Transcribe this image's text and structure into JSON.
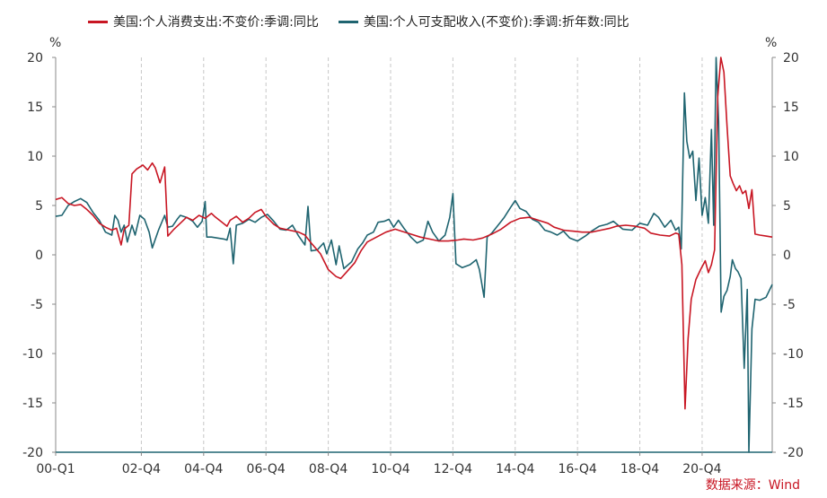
{
  "legend": {
    "series1": "美国:个人消费支出:不变价:季调:同比",
    "series2": "美国:个人可支配收入(不变价):季调:折年数:同比"
  },
  "unit_left": "%",
  "unit_right": "%",
  "source": "数据来源：Wind",
  "colors": {
    "series1": "#c81623",
    "series2": "#1f6470",
    "axis": "#1f6470",
    "grid": "#c8c8c8"
  },
  "chart_data": {
    "type": "line",
    "ylim": [
      -20,
      20
    ],
    "yticks": [
      20,
      15,
      10,
      5,
      0,
      -5,
      -10,
      -15,
      -20
    ],
    "xlabels": [
      "00-Q1",
      "02-Q4",
      "04-Q4",
      "06-Q4",
      "08-Q4",
      "10-Q4",
      "12-Q4",
      "14-Q4",
      "16-Q4",
      "18-Q4",
      "20-Q4"
    ],
    "xlabel_t": [
      2000.0,
      2002.75,
      2004.75,
      2006.75,
      2008.75,
      2010.75,
      2012.75,
      2014.75,
      2016.75,
      2018.75,
      2020.75
    ],
    "xrange": [
      2000.0,
      2022.0
    ],
    "grid_x": true,
    "series": [
      {
        "name": "美国:个人消费支出:不变价:季调:同比",
        "points": [
          [
            2000.0,
            5.6
          ],
          [
            2000.2,
            5.8
          ],
          [
            2000.4,
            5.2
          ],
          [
            2000.6,
            5.0
          ],
          [
            2000.8,
            5.1
          ],
          [
            2001.0,
            4.6
          ],
          [
            2001.2,
            4.0
          ],
          [
            2001.4,
            3.2
          ],
          [
            2001.6,
            2.8
          ],
          [
            2001.8,
            2.5
          ],
          [
            2001.95,
            2.7
          ],
          [
            2002.1,
            1.0
          ],
          [
            2002.2,
            2.6
          ],
          [
            2002.35,
            3.0
          ],
          [
            2002.45,
            8.2
          ],
          [
            2002.6,
            8.7
          ],
          [
            2002.8,
            9.1
          ],
          [
            2002.95,
            8.6
          ],
          [
            2003.1,
            9.3
          ],
          [
            2003.2,
            8.8
          ],
          [
            2003.35,
            7.3
          ],
          [
            2003.5,
            8.9
          ],
          [
            2003.6,
            1.9
          ],
          [
            2003.8,
            2.6
          ],
          [
            2004.0,
            3.2
          ],
          [
            2004.2,
            3.8
          ],
          [
            2004.4,
            3.5
          ],
          [
            2004.6,
            4.0
          ],
          [
            2004.8,
            3.7
          ],
          [
            2005.0,
            4.2
          ],
          [
            2005.1,
            3.9
          ],
          [
            2005.3,
            3.4
          ],
          [
            2005.5,
            2.9
          ],
          [
            2005.6,
            3.5
          ],
          [
            2005.8,
            3.9
          ],
          [
            2006.0,
            3.3
          ],
          [
            2006.2,
            3.7
          ],
          [
            2006.4,
            4.3
          ],
          [
            2006.6,
            4.6
          ],
          [
            2006.75,
            3.9
          ],
          [
            2007.0,
            3.1
          ],
          [
            2007.2,
            2.7
          ],
          [
            2007.5,
            2.5
          ],
          [
            2007.8,
            2.3
          ],
          [
            2008.0,
            2.0
          ],
          [
            2008.2,
            1.2
          ],
          [
            2008.5,
            0.1
          ],
          [
            2008.75,
            -1.5
          ],
          [
            2009.0,
            -2.2
          ],
          [
            2009.15,
            -2.4
          ],
          [
            2009.35,
            -1.7
          ],
          [
            2009.6,
            -0.8
          ],
          [
            2009.8,
            0.4
          ],
          [
            2010.0,
            1.3
          ],
          [
            2010.3,
            1.8
          ],
          [
            2010.6,
            2.3
          ],
          [
            2010.9,
            2.6
          ],
          [
            2011.1,
            2.4
          ],
          [
            2011.4,
            2.1
          ],
          [
            2011.7,
            1.8
          ],
          [
            2012.0,
            1.6
          ],
          [
            2012.3,
            1.4
          ],
          [
            2012.6,
            1.4
          ],
          [
            2012.9,
            1.5
          ],
          [
            2013.1,
            1.6
          ],
          [
            2013.4,
            1.5
          ],
          [
            2013.7,
            1.7
          ],
          [
            2014.0,
            2.1
          ],
          [
            2014.3,
            2.6
          ],
          [
            2014.6,
            3.3
          ],
          [
            2014.9,
            3.7
          ],
          [
            2015.2,
            3.8
          ],
          [
            2015.5,
            3.5
          ],
          [
            2015.8,
            3.2
          ],
          [
            2016.0,
            2.8
          ],
          [
            2016.3,
            2.5
          ],
          [
            2016.6,
            2.4
          ],
          [
            2016.9,
            2.3
          ],
          [
            2017.2,
            2.3
          ],
          [
            2017.5,
            2.5
          ],
          [
            2017.8,
            2.7
          ],
          [
            2018.0,
            2.9
          ],
          [
            2018.3,
            3.0
          ],
          [
            2018.6,
            2.9
          ],
          [
            2018.9,
            2.7
          ],
          [
            2019.1,
            2.2
          ],
          [
            2019.4,
            2.0
          ],
          [
            2019.7,
            1.9
          ],
          [
            2019.9,
            2.2
          ],
          [
            2020.0,
            2.1
          ],
          [
            2020.1,
            -1.0
          ],
          [
            2020.2,
            -15.6
          ],
          [
            2020.3,
            -8.5
          ],
          [
            2020.4,
            -4.5
          ],
          [
            2020.55,
            -2.5
          ],
          [
            2020.7,
            -1.5
          ],
          [
            2020.85,
            -0.6
          ],
          [
            2020.95,
            -1.8
          ],
          [
            2021.05,
            -1.0
          ],
          [
            2021.15,
            0.5
          ],
          [
            2021.25,
            16.0
          ],
          [
            2021.35,
            20.0
          ],
          [
            2021.45,
            18.5
          ],
          [
            2021.55,
            13.0
          ],
          [
            2021.65,
            8.0
          ],
          [
            2021.75,
            7.2
          ],
          [
            2021.85,
            6.5
          ],
          [
            2021.95,
            7.0
          ],
          [
            2022.05,
            6.2
          ],
          [
            2022.15,
            6.5
          ],
          [
            2022.25,
            4.7
          ],
          [
            2022.35,
            6.6
          ],
          [
            2022.45,
            2.1
          ],
          [
            2022.6,
            2.0
          ],
          [
            2022.8,
            1.9
          ],
          [
            2023.0,
            1.8
          ]
        ]
      },
      {
        "name": "美国:个人可支配收入(不变价):季调:折年数:同比",
        "points": [
          [
            2000.0,
            3.9
          ],
          [
            2000.2,
            4.0
          ],
          [
            2000.4,
            5.0
          ],
          [
            2000.6,
            5.4
          ],
          [
            2000.8,
            5.7
          ],
          [
            2001.0,
            5.3
          ],
          [
            2001.2,
            4.3
          ],
          [
            2001.4,
            3.5
          ],
          [
            2001.6,
            2.3
          ],
          [
            2001.8,
            2.0
          ],
          [
            2001.9,
            4.0
          ],
          [
            2002.0,
            3.5
          ],
          [
            2002.1,
            2.3
          ],
          [
            2002.2,
            3.0
          ],
          [
            2002.3,
            1.3
          ],
          [
            2002.45,
            3.0
          ],
          [
            2002.55,
            2.0
          ],
          [
            2002.7,
            4.0
          ],
          [
            2002.85,
            3.6
          ],
          [
            2003.0,
            2.3
          ],
          [
            2003.1,
            0.7
          ],
          [
            2003.3,
            2.5
          ],
          [
            2003.5,
            4.0
          ],
          [
            2003.6,
            2.8
          ],
          [
            2003.75,
            2.9
          ],
          [
            2003.9,
            3.6
          ],
          [
            2004.0,
            4.0
          ],
          [
            2004.2,
            3.8
          ],
          [
            2004.4,
            3.4
          ],
          [
            2004.55,
            2.8
          ],
          [
            2004.7,
            3.4
          ],
          [
            2004.8,
            5.4
          ],
          [
            2004.85,
            1.8
          ],
          [
            2005.0,
            1.8
          ],
          [
            2005.2,
            1.7
          ],
          [
            2005.4,
            1.6
          ],
          [
            2005.5,
            1.5
          ],
          [
            2005.6,
            2.7
          ],
          [
            2005.7,
            -0.9
          ],
          [
            2005.8,
            3.0
          ],
          [
            2006.0,
            3.2
          ],
          [
            2006.2,
            3.6
          ],
          [
            2006.4,
            3.3
          ],
          [
            2006.6,
            3.8
          ],
          [
            2006.8,
            4.1
          ],
          [
            2007.0,
            3.4
          ],
          [
            2007.2,
            2.6
          ],
          [
            2007.4,
            2.5
          ],
          [
            2007.6,
            3.0
          ],
          [
            2007.8,
            1.9
          ],
          [
            2008.0,
            1.0
          ],
          [
            2008.1,
            4.9
          ],
          [
            2008.2,
            0.4
          ],
          [
            2008.4,
            0.5
          ],
          [
            2008.6,
            1.2
          ],
          [
            2008.7,
            0.1
          ],
          [
            2008.85,
            1.5
          ],
          [
            2009.0,
            -1.0
          ],
          [
            2009.1,
            0.9
          ],
          [
            2009.25,
            -1.4
          ],
          [
            2009.5,
            -0.7
          ],
          [
            2009.7,
            0.6
          ],
          [
            2009.85,
            1.2
          ],
          [
            2010.0,
            2.0
          ],
          [
            2010.2,
            2.3
          ],
          [
            2010.35,
            3.3
          ],
          [
            2010.55,
            3.4
          ],
          [
            2010.7,
            3.6
          ],
          [
            2010.85,
            2.8
          ],
          [
            2011.0,
            3.5
          ],
          [
            2011.2,
            2.6
          ],
          [
            2011.4,
            1.8
          ],
          [
            2011.6,
            1.2
          ],
          [
            2011.8,
            1.5
          ],
          [
            2011.95,
            3.4
          ],
          [
            2012.1,
            2.3
          ],
          [
            2012.3,
            1.4
          ],
          [
            2012.5,
            2.0
          ],
          [
            2012.65,
            3.8
          ],
          [
            2012.75,
            6.2
          ],
          [
            2012.85,
            -0.9
          ],
          [
            2013.05,
            -1.3
          ],
          [
            2013.3,
            -1.0
          ],
          [
            2013.5,
            -0.5
          ],
          [
            2013.6,
            -1.5
          ],
          [
            2013.75,
            -4.3
          ],
          [
            2013.85,
            1.8
          ],
          [
            2014.0,
            2.2
          ],
          [
            2014.2,
            3.0
          ],
          [
            2014.4,
            3.8
          ],
          [
            2014.6,
            4.8
          ],
          [
            2014.75,
            5.5
          ],
          [
            2014.9,
            4.7
          ],
          [
            2015.1,
            4.4
          ],
          [
            2015.3,
            3.6
          ],
          [
            2015.5,
            3.3
          ],
          [
            2015.7,
            2.5
          ],
          [
            2015.9,
            2.3
          ],
          [
            2016.1,
            2.0
          ],
          [
            2016.3,
            2.4
          ],
          [
            2016.5,
            1.7
          ],
          [
            2016.75,
            1.4
          ],
          [
            2017.0,
            1.9
          ],
          [
            2017.2,
            2.4
          ],
          [
            2017.45,
            2.9
          ],
          [
            2017.7,
            3.1
          ],
          [
            2017.9,
            3.4
          ],
          [
            2018.2,
            2.6
          ],
          [
            2018.5,
            2.5
          ],
          [
            2018.75,
            3.2
          ],
          [
            2019.0,
            3.0
          ],
          [
            2019.2,
            4.2
          ],
          [
            2019.35,
            3.8
          ],
          [
            2019.55,
            2.8
          ],
          [
            2019.75,
            3.5
          ],
          [
            2019.9,
            2.5
          ],
          [
            2020.0,
            2.8
          ],
          [
            2020.08,
            0.6
          ],
          [
            2020.18,
            16.4
          ],
          [
            2020.26,
            11.5
          ],
          [
            2020.35,
            9.8
          ],
          [
            2020.45,
            10.5
          ],
          [
            2020.55,
            5.5
          ],
          [
            2020.65,
            9.8
          ],
          [
            2020.75,
            4.0
          ],
          [
            2020.85,
            5.8
          ],
          [
            2020.95,
            3.2
          ],
          [
            2021.05,
            12.7
          ],
          [
            2021.12,
            3.0
          ],
          [
            2021.2,
            20.0
          ],
          [
            2021.28,
            13.5
          ],
          [
            2021.36,
            -5.8
          ],
          [
            2021.45,
            -4.2
          ],
          [
            2021.55,
            -3.6
          ],
          [
            2021.65,
            -2.2
          ],
          [
            2021.72,
            -0.5
          ],
          [
            2021.82,
            -1.4
          ],
          [
            2021.9,
            -1.7
          ],
          [
            2022.0,
            -2.4
          ],
          [
            2022.1,
            -11.5
          ],
          [
            2022.2,
            -3.5
          ],
          [
            2022.25,
            -20.0
          ],
          [
            2022.35,
            -7.5
          ],
          [
            2022.45,
            -4.5
          ],
          [
            2022.6,
            -4.6
          ],
          [
            2022.8,
            -4.3
          ],
          [
            2023.0,
            -3.0
          ]
        ]
      }
    ]
  }
}
